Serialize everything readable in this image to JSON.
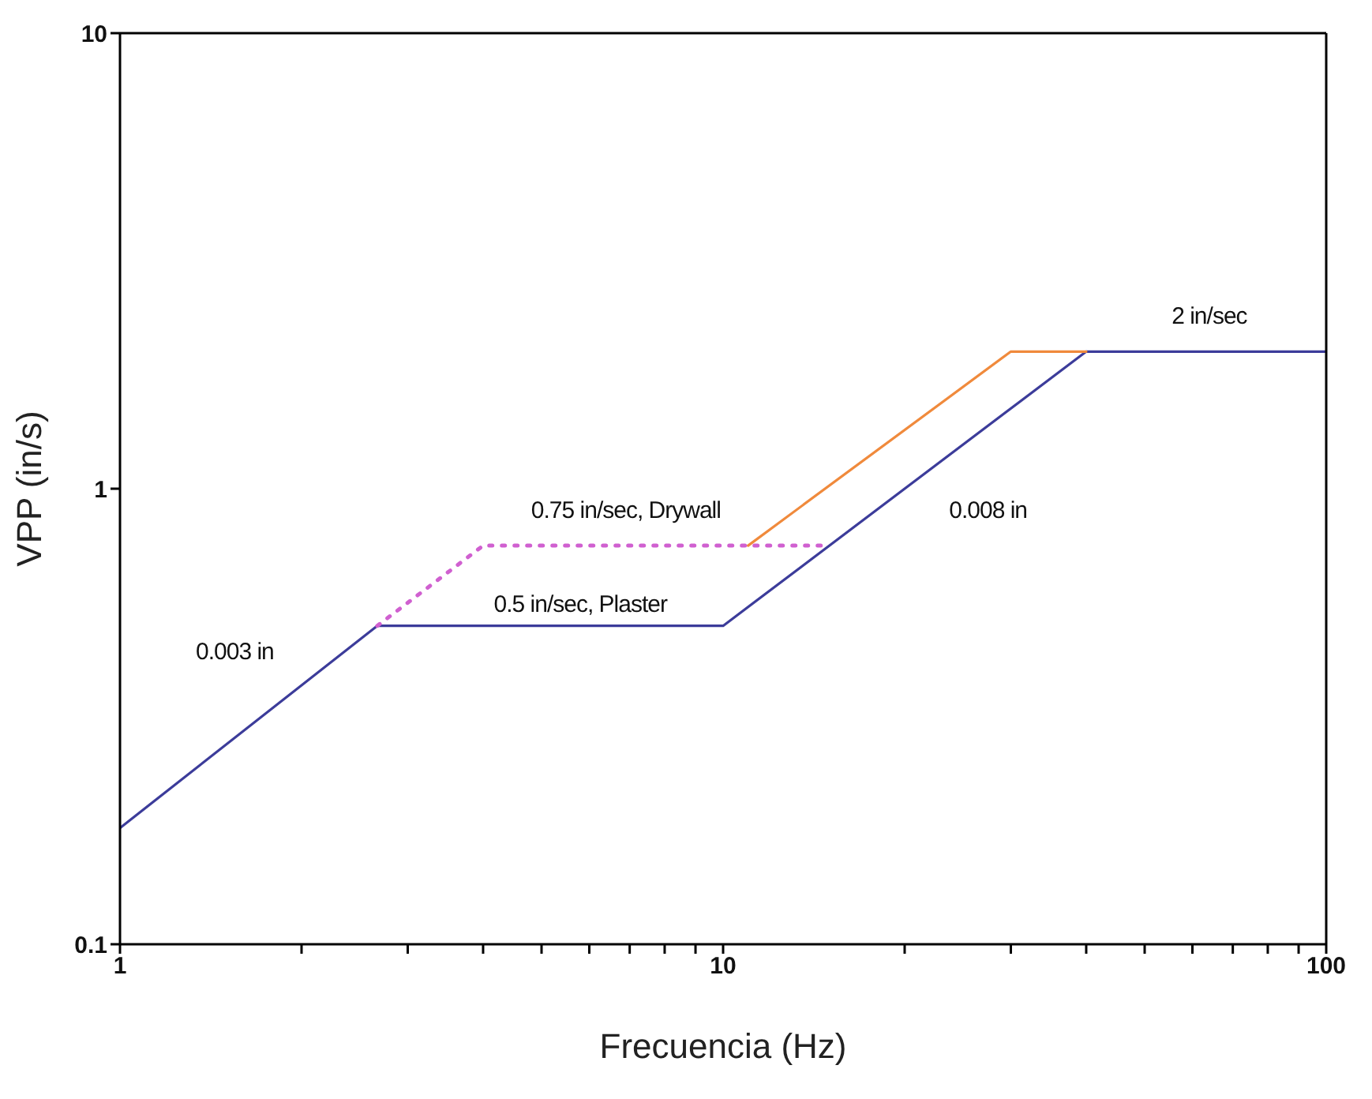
{
  "chart_data": {
    "type": "line",
    "xlabel": "Frecuencia (Hz)",
    "ylabel": "VPP (in/s)",
    "log": "xy",
    "xlim": [
      1,
      100
    ],
    "xticks": [
      1,
      {
        "value": 2,
        "label": null
      },
      {
        "value": 3,
        "label": null
      },
      {
        "value": 4,
        "label": null
      },
      {
        "value": 5,
        "label": null
      },
      {
        "value": 6,
        "label": null
      },
      {
        "value": 7,
        "label": null
      },
      {
        "value": 8,
        "label": null
      },
      {
        "value": 9,
        "label": null
      },
      10,
      {
        "value": 20,
        "label": null
      },
      {
        "value": 30,
        "label": null
      },
      {
        "value": 40,
        "label": null
      },
      {
        "value": 50,
        "label": null
      },
      {
        "value": 60,
        "label": null
      },
      {
        "value": 70,
        "label": null
      },
      {
        "value": 80,
        "label": null
      },
      {
        "value": 90,
        "label": null
      },
      100
    ],
    "ylim": [
      0.1,
      10
    ],
    "yticks": [
      0.1,
      1,
      10
    ],
    "series": [
      {
        "color": "#3c3c9a",
        "line_style": "solid",
        "x": [
          1,
          2.67,
          10,
          40,
          100
        ],
        "values": [
          0.18,
          0.5,
          0.5,
          2,
          2
        ]
      },
      {
        "color": "#f08a3c",
        "line_style": "solid",
        "x": [
          11,
          30,
          40
        ],
        "values": [
          0.75,
          2,
          2
        ]
      },
      {
        "color": "#d060d0",
        "line_style": "dotted",
        "x": [
          2.67,
          4,
          15
        ],
        "values": [
          0.5,
          0.75,
          0.75
        ]
      }
    ],
    "annotations": [
      "0.003 in",
      "0.5 in/sec, Plaster",
      "0.75 in/sec, Drywall",
      "0.008 in",
      "2 in/sec"
    ]
  }
}
